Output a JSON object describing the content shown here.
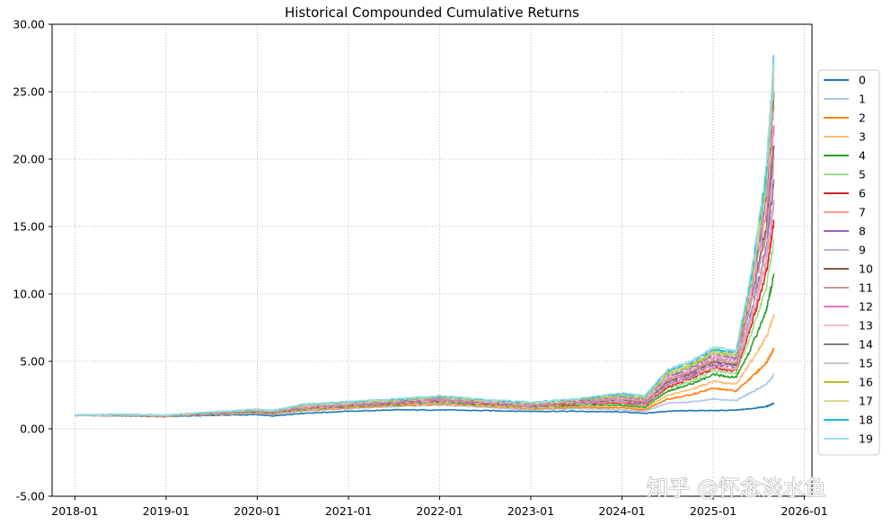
{
  "watermark": "知乎 @怀念淡水鱼",
  "chart_data": {
    "type": "line",
    "title": "Historical Compounded Cumulative Returns",
    "xlabel": "",
    "ylabel": "",
    "x_ticks": [
      "2018-01",
      "2019-01",
      "2020-01",
      "2021-01",
      "2022-01",
      "2023-01",
      "2024-01",
      "2025-01",
      "2026-01"
    ],
    "xlim": [
      "2017-10",
      "2026-02"
    ],
    "y_ticks": [
      "-5.00",
      "0.00",
      "5.00",
      "10.00",
      "15.00",
      "20.00",
      "25.00",
      "30.00"
    ],
    "ylim": [
      -5,
      30
    ],
    "grid": true,
    "legend_position": "right",
    "x": [
      "2018-01",
      "2018-07",
      "2019-01",
      "2019-07",
      "2020-01",
      "2020-03",
      "2020-07",
      "2021-01",
      "2021-07",
      "2022-01",
      "2022-07",
      "2023-01",
      "2023-07",
      "2024-01",
      "2024-04",
      "2024-07",
      "2024-10",
      "2025-01",
      "2025-04",
      "2025-06",
      "2025-08",
      "2025-09"
    ],
    "series": [
      {
        "name": "0",
        "color": "#1f77b4",
        "values": [
          1.0,
          0.95,
          0.9,
          1.0,
          1.05,
          0.95,
          1.15,
          1.3,
          1.4,
          1.4,
          1.35,
          1.3,
          1.3,
          1.25,
          1.15,
          1.3,
          1.35,
          1.35,
          1.38,
          1.5,
          1.65,
          1.9
        ]
      },
      {
        "name": "1",
        "color": "#aec7e8",
        "values": [
          1.0,
          0.97,
          0.92,
          1.05,
          1.15,
          1.05,
          1.3,
          1.5,
          1.65,
          1.75,
          1.6,
          1.4,
          1.5,
          1.4,
          1.3,
          1.9,
          2.0,
          2.2,
          2.1,
          2.7,
          3.3,
          4.0
        ]
      },
      {
        "name": "2",
        "color": "#ff7f0e",
        "values": [
          1.0,
          0.98,
          0.93,
          1.07,
          1.2,
          1.1,
          1.35,
          1.55,
          1.72,
          1.85,
          1.7,
          1.5,
          1.6,
          1.55,
          1.4,
          2.2,
          2.5,
          3.0,
          2.8,
          3.8,
          4.9,
          6.0
        ]
      },
      {
        "name": "3",
        "color": "#ffbb78",
        "values": [
          1.0,
          0.99,
          0.94,
          1.08,
          1.22,
          1.12,
          1.4,
          1.6,
          1.78,
          1.92,
          1.75,
          1.55,
          1.68,
          1.65,
          1.5,
          2.5,
          2.9,
          3.5,
          3.3,
          5.0,
          6.8,
          8.5
        ]
      },
      {
        "name": "4",
        "color": "#2ca02c",
        "values": [
          1.0,
          1.0,
          0.95,
          1.1,
          1.25,
          1.15,
          1.45,
          1.65,
          1.82,
          1.98,
          1.8,
          1.6,
          1.75,
          1.75,
          1.6,
          2.8,
          3.3,
          4.0,
          3.8,
          6.0,
          8.8,
          11.5
        ]
      },
      {
        "name": "5",
        "color": "#98df8a",
        "values": [
          1.0,
          1.0,
          0.95,
          1.11,
          1.27,
          1.17,
          1.48,
          1.68,
          1.85,
          2.02,
          1.83,
          1.63,
          1.8,
          1.85,
          1.7,
          3.0,
          3.5,
          4.3,
          4.1,
          7.0,
          10.5,
          14.0
        ]
      },
      {
        "name": "6",
        "color": "#d62728",
        "values": [
          1.0,
          1.01,
          0.96,
          1.12,
          1.28,
          1.18,
          1.5,
          1.7,
          1.88,
          2.05,
          1.86,
          1.66,
          1.85,
          1.92,
          1.75,
          3.1,
          3.7,
          4.5,
          4.3,
          7.6,
          11.6,
          15.5
        ]
      },
      {
        "name": "7",
        "color": "#ff9896",
        "values": [
          1.0,
          1.01,
          0.96,
          1.13,
          1.3,
          1.2,
          1.52,
          1.72,
          1.9,
          2.08,
          1.88,
          1.68,
          1.88,
          1.98,
          1.8,
          3.2,
          3.8,
          4.6,
          4.4,
          8.0,
          12.4,
          16.8
        ]
      },
      {
        "name": "8",
        "color": "#9467bd",
        "values": [
          1.0,
          1.02,
          0.97,
          1.14,
          1.31,
          1.21,
          1.55,
          1.75,
          1.93,
          2.12,
          1.9,
          1.7,
          1.92,
          2.05,
          1.85,
          3.3,
          3.9,
          4.8,
          4.6,
          8.6,
          13.5,
          18.5
        ]
      },
      {
        "name": "9",
        "color": "#c5b0d5",
        "values": [
          1.0,
          1.02,
          0.97,
          1.15,
          1.32,
          1.22,
          1.57,
          1.77,
          1.95,
          2.15,
          1.92,
          1.72,
          1.95,
          2.1,
          1.9,
          3.4,
          4.0,
          4.9,
          4.7,
          8.4,
          13.0,
          17.0
        ]
      },
      {
        "name": "10",
        "color": "#8c564b",
        "values": [
          1.0,
          1.03,
          0.98,
          1.16,
          1.33,
          1.23,
          1.6,
          1.8,
          1.98,
          2.18,
          1.95,
          1.75,
          1.98,
          2.15,
          1.95,
          3.5,
          4.1,
          5.0,
          4.8,
          9.5,
          15.0,
          21.0
        ]
      },
      {
        "name": "11",
        "color": "#c49c94",
        "values": [
          1.0,
          1.03,
          0.98,
          1.17,
          1.35,
          1.25,
          1.62,
          1.82,
          2.0,
          2.2,
          1.97,
          1.77,
          2.0,
          2.2,
          2.0,
          3.6,
          4.2,
          5.1,
          4.9,
          9.3,
          14.4,
          20.0
        ]
      },
      {
        "name": "12",
        "color": "#e377c2",
        "values": [
          1.0,
          1.04,
          0.99,
          1.18,
          1.36,
          1.26,
          1.65,
          1.85,
          2.03,
          2.24,
          2.0,
          1.8,
          2.05,
          2.3,
          2.1,
          3.7,
          4.3,
          5.3,
          5.1,
          10.0,
          16.0,
          22.5
        ]
      },
      {
        "name": "13",
        "color": "#f7b6d2",
        "values": [
          1.0,
          1.04,
          0.99,
          1.19,
          1.37,
          1.27,
          1.67,
          1.87,
          2.05,
          2.27,
          2.02,
          1.82,
          2.08,
          2.35,
          2.15,
          3.8,
          4.4,
          5.4,
          5.2,
          10.2,
          16.8,
          24.0
        ]
      },
      {
        "name": "14",
        "color": "#7f7f7f",
        "values": [
          1.0,
          1.05,
          1.0,
          1.2,
          1.38,
          1.28,
          1.7,
          1.9,
          2.08,
          2.3,
          2.05,
          1.85,
          2.1,
          2.4,
          2.2,
          3.9,
          4.5,
          5.5,
          5.3,
          10.4,
          17.2,
          25.0
        ]
      },
      {
        "name": "15",
        "color": "#c7c7c7",
        "values": [
          1.0,
          1.05,
          1.0,
          1.21,
          1.4,
          1.3,
          1.72,
          1.92,
          2.1,
          2.33,
          2.07,
          1.87,
          2.12,
          2.45,
          2.25,
          4.0,
          4.6,
          5.6,
          5.4,
          10.6,
          17.8,
          26.0
        ]
      },
      {
        "name": "16",
        "color": "#bcbd22",
        "values": [
          1.0,
          1.06,
          1.01,
          1.22,
          1.41,
          1.31,
          1.75,
          1.95,
          2.13,
          2.36,
          2.1,
          1.9,
          2.15,
          2.5,
          2.3,
          4.1,
          4.7,
          5.7,
          5.5,
          10.8,
          18.2,
          26.5
        ]
      },
      {
        "name": "17",
        "color": "#dbdb8d",
        "values": [
          1.0,
          1.06,
          1.01,
          1.23,
          1.42,
          1.32,
          1.77,
          1.97,
          2.15,
          2.39,
          2.12,
          1.92,
          2.18,
          2.55,
          2.35,
          4.2,
          4.8,
          5.8,
          5.6,
          11.0,
          18.6,
          27.0
        ]
      },
      {
        "name": "18",
        "color": "#17becf",
        "values": [
          1.0,
          1.07,
          1.02,
          1.24,
          1.44,
          1.34,
          1.8,
          2.0,
          2.18,
          2.42,
          2.15,
          1.95,
          2.2,
          2.6,
          2.4,
          4.3,
          4.9,
          5.9,
          5.7,
          11.2,
          19.0,
          27.5
        ]
      },
      {
        "name": "19",
        "color": "#9edae5",
        "values": [
          1.0,
          1.07,
          1.02,
          1.25,
          1.45,
          1.35,
          1.82,
          2.02,
          2.2,
          2.45,
          2.17,
          1.97,
          2.22,
          2.65,
          2.45,
          4.4,
          5.0,
          6.0,
          5.8,
          11.4,
          19.4,
          27.6
        ]
      }
    ]
  }
}
